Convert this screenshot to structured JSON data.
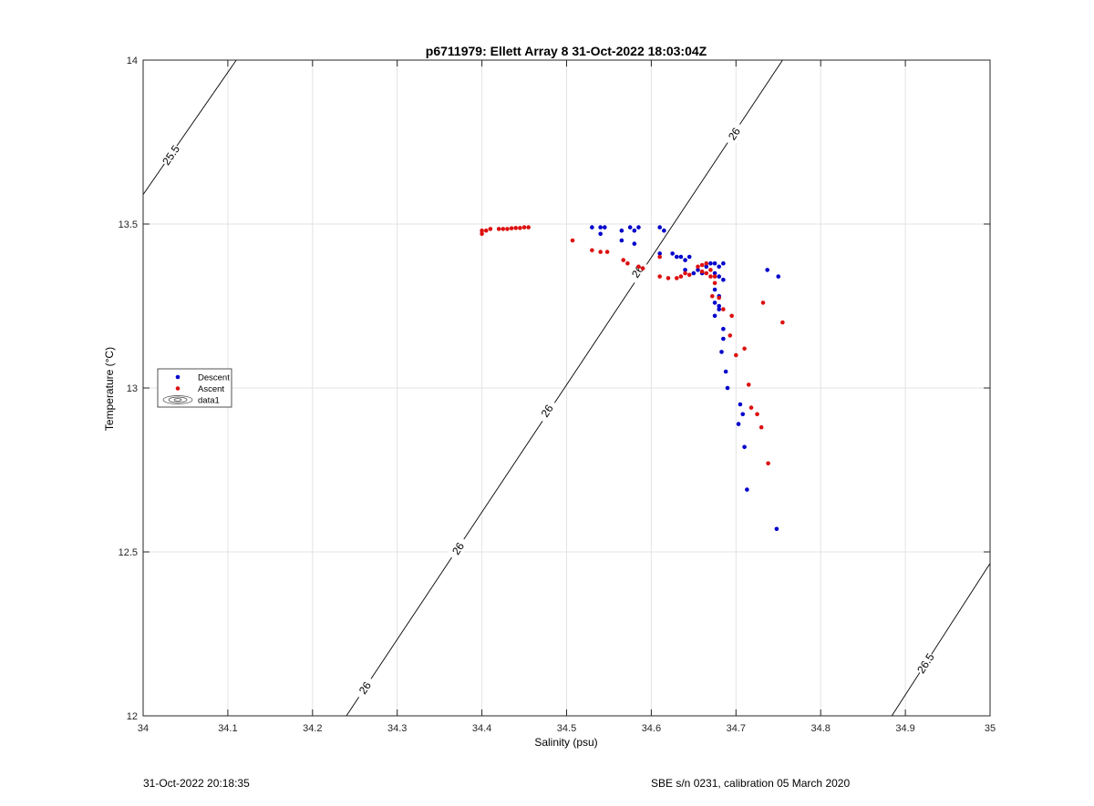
{
  "chart_data": {
    "type": "scatter",
    "title": "p6711979: Ellett Array 8 31-Oct-2022 18:03:04Z",
    "xlabel": "Salinity (psu)",
    "ylabel": "Temperature (°C)",
    "xlim": [
      34,
      35
    ],
    "ylim": [
      12,
      14
    ],
    "xticks": [
      34,
      34.1,
      34.2,
      34.3,
      34.4,
      34.5,
      34.6,
      34.7,
      34.8,
      34.9,
      35
    ],
    "xtick_labels": [
      "34",
      "34.1",
      "34.2",
      "34.3",
      "34.4",
      "34.5",
      "34.6",
      "34.7",
      "34.8",
      "34.9",
      "35"
    ],
    "yticks": [
      12,
      12.5,
      13,
      13.5,
      14
    ],
    "ytick_labels": [
      "12",
      "12.5",
      "13",
      "13.5",
      "14"
    ],
    "grid": true,
    "legend": {
      "placement": "left",
      "entries": [
        "Descent",
        "Ascent",
        "data1"
      ]
    },
    "contours": [
      {
        "label": "25.5",
        "points": [
          [
            34.0,
            13.59
          ],
          [
            34.11,
            14.0
          ]
        ],
        "label_positions": [
          [
            34.033,
            13.71
          ]
        ]
      },
      {
        "label": "26",
        "points": [
          [
            34.24,
            12.0
          ],
          [
            34.755,
            14.0
          ]
        ],
        "label_positions": [
          [
            34.262,
            12.085
          ],
          [
            34.372,
            12.51
          ],
          [
            34.477,
            12.93
          ],
          [
            34.584,
            13.355
          ],
          [
            34.698,
            13.775
          ]
        ]
      },
      {
        "label": "26.5",
        "points": [
          [
            34.884,
            12.0
          ],
          [
            35.0,
            12.465
          ]
        ],
        "label_positions": [
          [
            34.924,
            12.16
          ]
        ]
      }
    ],
    "series": [
      {
        "name": "Descent",
        "color": "#0000cc",
        "points": [
          [
            34.53,
            13.49
          ],
          [
            34.54,
            13.49
          ],
          [
            34.545,
            13.49
          ],
          [
            34.54,
            13.47
          ],
          [
            34.565,
            13.48
          ],
          [
            34.575,
            13.49
          ],
          [
            34.58,
            13.48
          ],
          [
            34.585,
            13.49
          ],
          [
            34.565,
            13.45
          ],
          [
            34.58,
            13.44
          ],
          [
            34.61,
            13.49
          ],
          [
            34.615,
            13.48
          ],
          [
            34.61,
            13.41
          ],
          [
            34.625,
            13.41
          ],
          [
            34.63,
            13.4
          ],
          [
            34.635,
            13.4
          ],
          [
            34.64,
            13.39
          ],
          [
            34.645,
            13.4
          ],
          [
            34.64,
            13.36
          ],
          [
            34.65,
            13.35
          ],
          [
            34.655,
            13.36
          ],
          [
            34.66,
            13.35
          ],
          [
            34.665,
            13.37
          ],
          [
            34.67,
            13.38
          ],
          [
            34.675,
            13.38
          ],
          [
            34.68,
            13.37
          ],
          [
            34.685,
            13.38
          ],
          [
            34.675,
            13.35
          ],
          [
            34.68,
            13.34
          ],
          [
            34.685,
            13.33
          ],
          [
            34.675,
            13.3
          ],
          [
            34.68,
            13.28
          ],
          [
            34.675,
            13.26
          ],
          [
            34.68,
            13.25
          ],
          [
            34.675,
            13.22
          ],
          [
            34.68,
            13.24
          ],
          [
            34.685,
            13.18
          ],
          [
            34.685,
            13.15
          ],
          [
            34.683,
            13.11
          ],
          [
            34.688,
            13.05
          ],
          [
            34.69,
            13.0
          ],
          [
            34.705,
            12.95
          ],
          [
            34.703,
            12.89
          ],
          [
            34.708,
            12.92
          ],
          [
            34.71,
            12.82
          ],
          [
            34.713,
            12.69
          ],
          [
            34.748,
            12.57
          ],
          [
            34.737,
            13.36
          ],
          [
            34.75,
            13.34
          ]
        ]
      },
      {
        "name": "Ascent",
        "color": "#dd1111",
        "points": [
          [
            34.4,
            13.48
          ],
          [
            34.405,
            13.48
          ],
          [
            34.4,
            13.47
          ],
          [
            34.41,
            13.485
          ],
          [
            34.42,
            13.485
          ],
          [
            34.425,
            13.485
          ],
          [
            34.43,
            13.485
          ],
          [
            34.435,
            13.487
          ],
          [
            34.44,
            13.488
          ],
          [
            34.445,
            13.488
          ],
          [
            34.45,
            13.49
          ],
          [
            34.455,
            13.49
          ],
          [
            34.507,
            13.45
          ],
          [
            34.53,
            13.42
          ],
          [
            34.54,
            13.415
          ],
          [
            34.548,
            13.415
          ],
          [
            34.567,
            13.39
          ],
          [
            34.572,
            13.38
          ],
          [
            34.585,
            13.37
          ],
          [
            34.59,
            13.365
          ],
          [
            34.61,
            13.4
          ],
          [
            34.61,
            13.34
          ],
          [
            34.62,
            13.335
          ],
          [
            34.63,
            13.335
          ],
          [
            34.635,
            13.34
          ],
          [
            34.64,
            13.35
          ],
          [
            34.645,
            13.345
          ],
          [
            34.655,
            13.37
          ],
          [
            34.66,
            13.375
          ],
          [
            34.665,
            13.38
          ],
          [
            34.66,
            13.355
          ],
          [
            34.665,
            13.35
          ],
          [
            34.67,
            13.36
          ],
          [
            34.67,
            13.34
          ],
          [
            34.675,
            13.34
          ],
          [
            34.675,
            13.32
          ],
          [
            34.672,
            13.28
          ],
          [
            34.68,
            13.275
          ],
          [
            34.685,
            13.24
          ],
          [
            34.695,
            13.22
          ],
          [
            34.693,
            13.16
          ],
          [
            34.7,
            13.1
          ],
          [
            34.71,
            13.12
          ],
          [
            34.715,
            13.01
          ],
          [
            34.718,
            12.94
          ],
          [
            34.725,
            12.92
          ],
          [
            34.73,
            12.88
          ],
          [
            34.738,
            12.77
          ],
          [
            34.732,
            13.26
          ],
          [
            34.755,
            13.2
          ]
        ]
      }
    ]
  },
  "footer": {
    "left": "31-Oct-2022 20:18:35",
    "right": "SBE s/n 0231, calibration 05 March 2020"
  }
}
